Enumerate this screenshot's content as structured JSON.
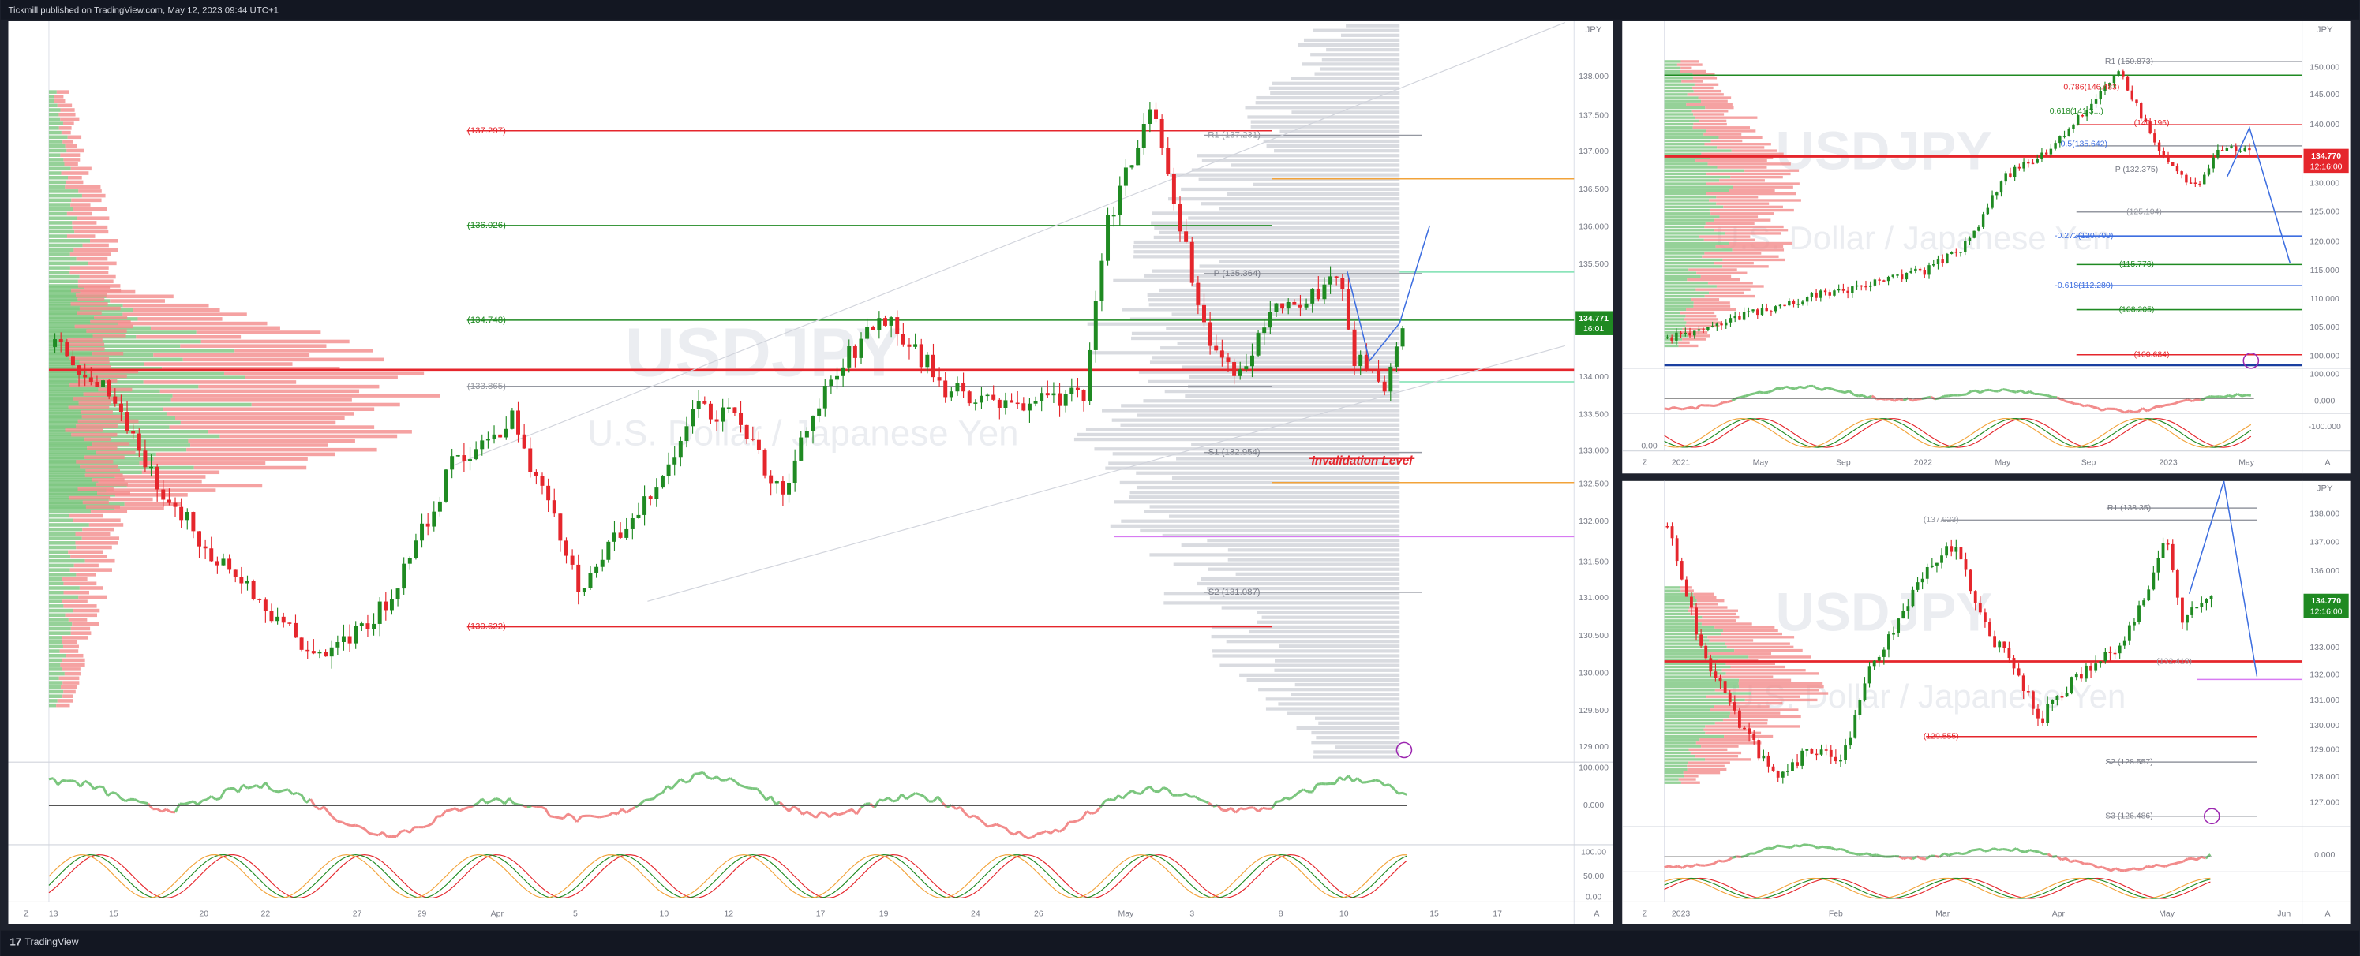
{
  "header": {
    "text": "Tickmill published on TradingView.com, May 12, 2023 09:44 UTC+1"
  },
  "footer": {
    "brand": "TradingView"
  },
  "panels": [
    {
      "currency": "JPY",
      "watermark": "USDJPY",
      "subtitle": "U.S. Dollar / Japanese Yen",
      "last_price": "134.771",
      "countdown": "16:01",
      "price_labels": [
        "138.000",
        "137.500",
        "137.000",
        "136.500",
        "136.000",
        "135.500",
        "134.000",
        "133.500",
        "133.000",
        "132.500",
        "132.000",
        "131.500",
        "131.000",
        "130.500",
        "130.000",
        "129.500",
        "129.000"
      ],
      "osc_labels": [
        "100.000",
        "0.000",
        "100.00",
        "50.00",
        "0.00"
      ],
      "dates": [
        "13",
        "15",
        "20",
        "22",
        "27",
        "29",
        "Apr",
        "5",
        "10",
        "12",
        "17",
        "19",
        "24",
        "26",
        "May",
        "3",
        "8",
        "10",
        "15",
        "17"
      ],
      "levels": [
        "(137.297)",
        "(136.026)",
        "(134.748)",
        "(133.865)",
        "R1 (137.231)",
        "P (135.364)",
        "S1 (132.954)",
        "S2 (131.087)",
        "(130.622)"
      ],
      "annotation": "Invalidation Level",
      "buttons": [
        "Z",
        "A"
      ]
    },
    {
      "currency": "JPY",
      "watermark": "USDJPY",
      "subtitle": "U.S. Dollar / Japanese Yen",
      "last_price": "134.770",
      "countdown": "12:16:00",
      "price_labels": [
        "150.000",
        "145.000",
        "140.000",
        "130.000",
        "125.000",
        "120.000",
        "115.000",
        "110.000",
        "105.000",
        "100.000"
      ],
      "osc_labels": [
        "100.000",
        "0.000",
        "-100.000",
        "0.00"
      ],
      "dates": [
        "2021",
        "May",
        "Sep",
        "2022",
        "May",
        "Sep",
        "2023",
        "May"
      ],
      "levels": [
        "R1 (150.873)",
        "0.786(146.483)",
        "0.618(141.3...)",
        "(140.196)",
        "0.5(135.642)",
        "P (132.375)",
        "(125.104)",
        "-0.272(120.709)",
        "(115.776)",
        "-0.618(112.280)",
        "(108.205)",
        "(100.684)"
      ],
      "buttons": [
        "Z",
        "A"
      ]
    },
    {
      "currency": "JPY",
      "watermark": "USDJPY",
      "subtitle": "U.S. Dollar / Japanese Yen",
      "last_price": "134.770",
      "countdown": "12:16:00",
      "price_labels": [
        "138.000",
        "137.000",
        "136.000",
        "133.000",
        "132.000",
        "131.000",
        "130.000",
        "129.000",
        "128.000",
        "127.000"
      ],
      "osc_labels": [
        "0.000"
      ],
      "dates": [
        "2023",
        "Feb",
        "Mar",
        "Apr",
        "May",
        "Jun"
      ],
      "levels": [
        "(137.923)",
        "R1 (138.35)",
        "(132.418)",
        "(129.555)",
        "S2 (128.557)",
        "S3 (126.486)"
      ],
      "buttons": [
        "Z",
        "A"
      ]
    }
  ]
}
